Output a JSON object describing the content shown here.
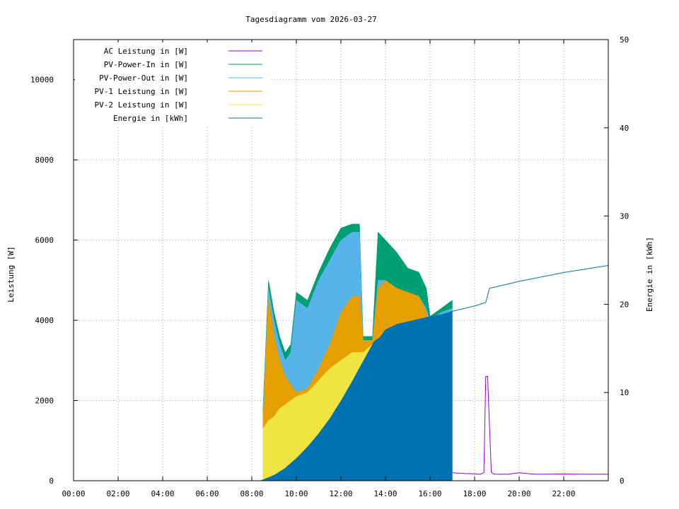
{
  "chart_data": {
    "type": "line",
    "title": "Tagesdiagramm vom 2026-03-27",
    "ylabel": "Leistung [W]",
    "y2label": "Energie in [kWh]",
    "xlim": [
      "00:00",
      "24:00"
    ],
    "ylim": [
      0,
      11000
    ],
    "y2lim": [
      0,
      50
    ],
    "x_ticks": [
      "00:00",
      "02:00",
      "04:00",
      "06:00",
      "08:00",
      "10:00",
      "12:00",
      "14:00",
      "16:00",
      "18:00",
      "20:00",
      "22:00"
    ],
    "y_ticks": [
      0,
      2000,
      4000,
      6000,
      8000,
      10000
    ],
    "y2_ticks": [
      0,
      10,
      20,
      30,
      40,
      50
    ],
    "grid": true,
    "legend_position": "top-left",
    "series": [
      {
        "name": "AC Leistung in [W]",
        "color": "#9400d3",
        "axis": "y",
        "style": "line",
        "x": [
          "17:00",
          "17:30",
          "18:00",
          "18:15",
          "18:25",
          "18:30",
          "18:35",
          "18:40",
          "18:45",
          "18:50",
          "19:00",
          "19:30",
          "20:00",
          "20:30",
          "21:00",
          "22:00",
          "23:00",
          "24:00"
        ],
        "y": [
          200,
          180,
          170,
          160,
          200,
          2600,
          2600,
          1400,
          220,
          170,
          160,
          160,
          200,
          170,
          160,
          170,
          160,
          160
        ]
      },
      {
        "name": "PV-Power-In in [W]",
        "color": "#009e73",
        "axis": "y",
        "style": "fill",
        "x": [
          "08:30",
          "08:45",
          "09:00",
          "09:15",
          "09:30",
          "09:45",
          "10:00",
          "10:30",
          "11:00",
          "11:30",
          "12:00",
          "12:30",
          "12:50",
          "13:00",
          "13:25",
          "13:40",
          "14:00",
          "14:30",
          "15:00",
          "15:30",
          "15:50",
          "16:00",
          "16:30",
          "17:00"
        ],
        "y": [
          1800,
          5000,
          4200,
          3600,
          3200,
          3400,
          4700,
          4500,
          5200,
          5800,
          6300,
          6400,
          6400,
          3600,
          3600,
          6200,
          6000,
          5700,
          5300,
          5200,
          4800,
          4100,
          4300,
          4500
        ]
      },
      {
        "name": "PV-Power-Out in [W]",
        "color": "#56b4e9",
        "axis": "y",
        "style": "fill",
        "x": [
          "08:30",
          "08:45",
          "09:00",
          "09:15",
          "09:30",
          "09:45",
          "10:00",
          "10:30",
          "11:00",
          "11:30",
          "12:00",
          "12:30",
          "12:50",
          "13:00",
          "13:25",
          "13:40",
          "14:00",
          "14:30",
          "15:00",
          "15:30",
          "15:50",
          "16:00",
          "16:30",
          "17:00"
        ],
        "y": [
          1700,
          4800,
          4000,
          3400,
          3000,
          3200,
          4500,
          4300,
          5000,
          5500,
          6000,
          6200,
          6200,
          3500,
          3500,
          5000,
          5000,
          4800,
          4700,
          4600,
          4300,
          4000,
          4200,
          4300
        ]
      },
      {
        "name": "PV-1 Leistung in [W]",
        "color": "#e69f00",
        "axis": "y",
        "style": "fill",
        "x": [
          "08:30",
          "08:45",
          "09:00",
          "09:15",
          "09:30",
          "09:45",
          "10:00",
          "10:30",
          "11:00",
          "11:30",
          "12:00",
          "12:30",
          "12:50",
          "13:00",
          "13:25",
          "13:40",
          "14:00",
          "14:30",
          "15:00",
          "15:30",
          "15:50",
          "16:00",
          "16:30",
          "17:00"
        ],
        "y": [
          1500,
          4600,
          3600,
          3000,
          2600,
          2400,
          2200,
          2300,
          2800,
          3400,
          4200,
          4600,
          4600,
          3500,
          3500,
          4800,
          5000,
          4800,
          4700,
          4600,
          4200,
          3900,
          4000,
          4100
        ]
      },
      {
        "name": "PV-2 Leistung in [W]",
        "color": "#f0e442",
        "axis": "y",
        "style": "fill",
        "x": [
          "08:30",
          "08:45",
          "09:00",
          "09:15",
          "09:30",
          "09:45",
          "10:00",
          "10:30",
          "11:00",
          "11:30",
          "12:00",
          "12:30",
          "12:50",
          "13:00",
          "13:25",
          "13:40",
          "14:00",
          "14:30",
          "15:00",
          "15:30",
          "15:50",
          "16:00",
          "16:30",
          "17:00"
        ],
        "y": [
          1300,
          1500,
          1600,
          1800,
          1900,
          2000,
          2100,
          2200,
          2500,
          2800,
          3000,
          3200,
          3200,
          3200,
          3400,
          3500,
          3600,
          3700,
          3800,
          3900,
          3900,
          3900,
          4000,
          4100
        ]
      },
      {
        "name": "Energie in [kWh]",
        "color": "#0072b2",
        "axis": "y2",
        "style": "line-fill-until-17:00",
        "x": [
          "08:25",
          "09:00",
          "09:30",
          "10:00",
          "10:30",
          "11:00",
          "11:30",
          "12:00",
          "12:30",
          "13:00",
          "13:30",
          "13:45",
          "14:00",
          "14:30",
          "15:00",
          "15:30",
          "16:00",
          "16:30",
          "17:00",
          "17:30",
          "18:00",
          "18:30",
          "18:40",
          "19:00",
          "20:00",
          "21:00",
          "22:00",
          "23:00",
          "24:00"
        ],
        "y": [
          0,
          0.6,
          1.4,
          2.5,
          3.8,
          5.3,
          7.0,
          9.0,
          11.2,
          13.5,
          15.8,
          16.2,
          17.1,
          17.7,
          18.0,
          18.3,
          18.6,
          18.8,
          19.2,
          19.5,
          19.8,
          20.2,
          21.8,
          22.0,
          22.6,
          23.1,
          23.6,
          24.0,
          24.4
        ]
      }
    ]
  }
}
